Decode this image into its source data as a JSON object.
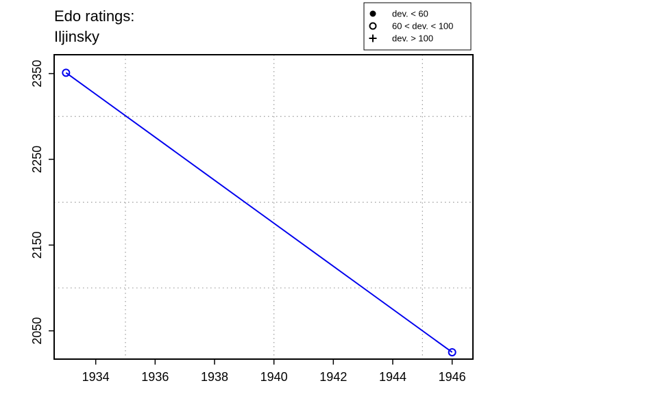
{
  "chart_data": {
    "type": "line",
    "title_lines": [
      "Edo ratings:",
      "Iljinsky"
    ],
    "xlabel": "",
    "ylabel": "",
    "xlim": [
      1932.6,
      1946.7
    ],
    "ylim": [
      2017,
      2372
    ],
    "x_ticks": [
      1934,
      1936,
      1938,
      1940,
      1942,
      1944,
      1946
    ],
    "y_ticks": [
      2050,
      2150,
      2250,
      2350
    ],
    "x_grid": [
      1935,
      1940,
      1945
    ],
    "y_grid": [
      2100,
      2200,
      2300
    ],
    "grid": true,
    "legend": {
      "position": "top-right",
      "entries": [
        {
          "marker": "filled-circle",
          "label": "dev. < 60"
        },
        {
          "marker": "open-circle",
          "label": "60 < dev. < 100"
        },
        {
          "marker": "plus",
          "label": "dev. > 100"
        }
      ]
    },
    "series": [
      {
        "color": "#0000ee",
        "marker": "open-circle",
        "x": [
          1933,
          1946
        ],
        "y": [
          2351,
          2025
        ]
      }
    ]
  }
}
